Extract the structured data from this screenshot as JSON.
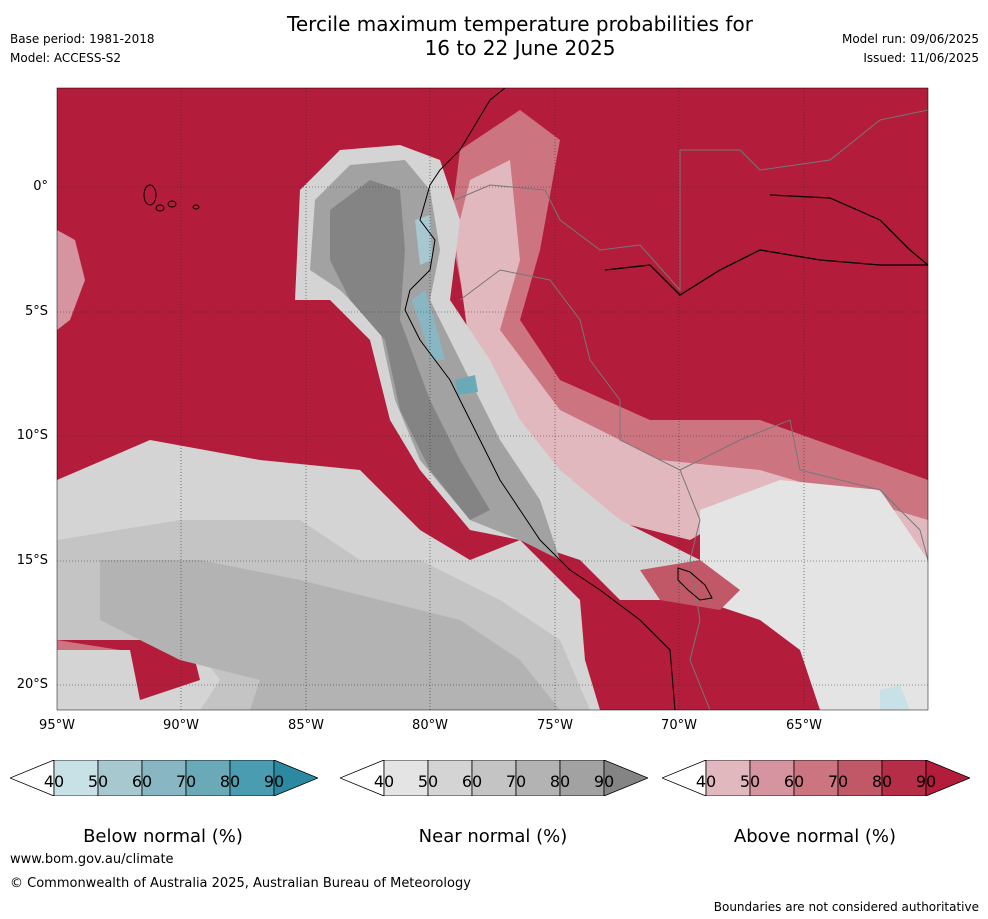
{
  "header": {
    "title_line1": "Tercile maximum temperature probabilities for",
    "title_line2": "16 to 22 June 2025",
    "base_period": "Base period: 1981-2018",
    "model": "Model: ACCESS-S2",
    "model_run": "Model run: 09/06/2025",
    "issued": "Issued: 11/06/2025"
  },
  "map": {
    "lat_labels": [
      "0°",
      "5°S",
      "10°S",
      "15°S",
      "20°S"
    ],
    "lon_labels": [
      "95°W",
      "90°W",
      "85°W",
      "80°W",
      "75°W",
      "70°W",
      "65°W"
    ]
  },
  "legend": {
    "below": {
      "title": "Below normal (%)",
      "ticks": [
        "40",
        "50",
        "60",
        "70",
        "80",
        "90"
      ],
      "colors": [
        "#ffffff",
        "#c8e1e6",
        "#a7c8ce",
        "#88b6c2",
        "#6aaab8",
        "#4a9db0",
        "#2b8aa2"
      ]
    },
    "near": {
      "title": "Near normal (%)",
      "ticks": [
        "40",
        "50",
        "60",
        "70",
        "80",
        "90"
      ],
      "colors": [
        "#ffffff",
        "#e4e4e4",
        "#d4d4d4",
        "#c4c4c4",
        "#b3b3b3",
        "#a2a2a2",
        "#848484"
      ]
    },
    "above": {
      "title": "Above normal (%)",
      "ticks": [
        "40",
        "50",
        "60",
        "70",
        "80",
        "90"
      ],
      "colors": [
        "#ffffff",
        "#e2b8bf",
        "#d5949f",
        "#cc7581",
        "#c15868",
        "#b52d46",
        "#b31c3a"
      ]
    }
  },
  "footer": {
    "website": "www.bom.gov.au/climate",
    "copyright": "© Commonwealth of Australia 2025, Australian Bureau of Meteorology",
    "disclaimer": "Boundaries are not considered authoritative"
  }
}
